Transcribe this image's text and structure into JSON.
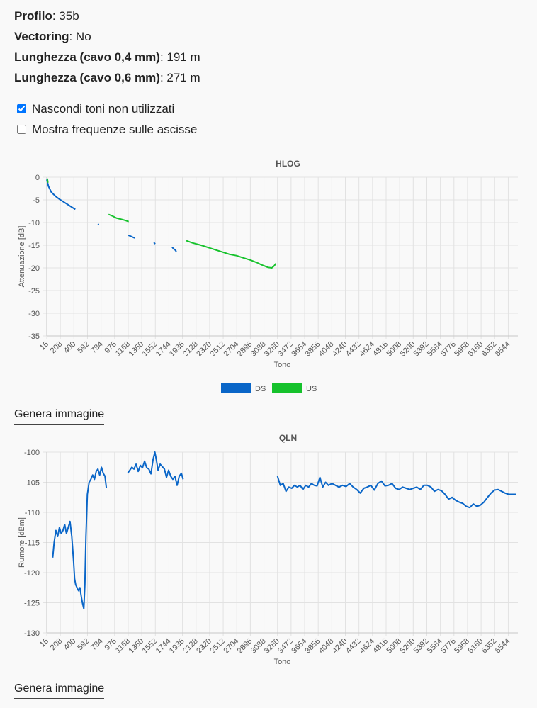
{
  "info": [
    {
      "label": "Profilo",
      "value": "35b"
    },
    {
      "label": "Vectoring",
      "value": "No"
    },
    {
      "label": "Lunghezza (cavo 0,4 mm)",
      "value": "191 m"
    },
    {
      "label": "Lunghezza (cavo 0,6 mm)",
      "value": "271 m"
    }
  ],
  "options": [
    {
      "label": "Nascondi toni non utilizzati",
      "checked": true
    },
    {
      "label": "Mostra frequenze sulle ascisse",
      "checked": false
    }
  ],
  "genera_label": "Genera immagine",
  "chart_data": [
    {
      "type": "line",
      "title": "HLOG",
      "xlabel": "Tono",
      "ylabel": "Attenuazione [dB]",
      "xlim": [
        16,
        6680
      ],
      "ylim": [
        -35,
        0
      ],
      "yticks": [
        0,
        -5,
        -10,
        -15,
        -20,
        -25,
        -30,
        -35
      ],
      "xticks": [
        "16",
        "208",
        "400",
        "592",
        "784",
        "976",
        "1168",
        "1360",
        "1552",
        "1744",
        "1936",
        "2128",
        "2320",
        "2512",
        "2704",
        "2896",
        "3088",
        "3280",
        "3472",
        "3664",
        "3856",
        "4048",
        "4240",
        "4432",
        "4624",
        "4816",
        "5008",
        "5200",
        "5392",
        "5584",
        "5776",
        "5968",
        "6160",
        "6352",
        "6544"
      ],
      "grid": true,
      "legend_position": "bottom",
      "series": [
        {
          "name": "DS",
          "color": "#0a66c8",
          "segments": [
            [
              [
                16,
                -0.5
              ],
              [
                40,
                -2
              ],
              [
                80,
                -3.3
              ],
              [
                140,
                -4.2
              ],
              [
                200,
                -4.9
              ],
              [
                260,
                -5.5
              ],
              [
                320,
                -6.1
              ],
              [
                380,
                -6.7
              ],
              [
                420,
                -7.1
              ]
            ],
            [
              [
                745,
                -10.3
              ],
              [
                750,
                -10.6
              ]
            ],
            [
              [
                1170,
                -12.8
              ],
              [
                1200,
                -13
              ],
              [
                1230,
                -13.2
              ],
              [
                1260,
                -13.4
              ]
            ],
            [
              [
                1530,
                -14.4
              ],
              [
                1550,
                -14.7
              ]
            ],
            [
              [
                1790,
                -15.4
              ],
              [
                1810,
                -15.8
              ],
              [
                1830,
                -16
              ],
              [
                1850,
                -16.4
              ]
            ]
          ]
        },
        {
          "name": "US",
          "color": "#16c22c",
          "segments": [
            [
              [
                24,
                -0.3
              ],
              [
                32,
                -1.2
              ]
            ],
            [
              [
                890,
                -8.2
              ],
              [
                950,
                -8.6
              ],
              [
                1000,
                -9
              ],
              [
                1050,
                -9.2
              ],
              [
                1100,
                -9.4
              ],
              [
                1140,
                -9.6
              ],
              [
                1175,
                -9.8
              ]
            ],
            [
              [
                1990,
                -14
              ],
              [
                2080,
                -14.5
              ],
              [
                2200,
                -15
              ],
              [
                2300,
                -15.5
              ],
              [
                2400,
                -16
              ],
              [
                2500,
                -16.5
              ],
              [
                2600,
                -17
              ],
              [
                2700,
                -17.3
              ],
              [
                2800,
                -17.8
              ],
              [
                2900,
                -18.3
              ],
              [
                3000,
                -18.9
              ],
              [
                3050,
                -19.3
              ],
              [
                3100,
                -19.6
              ],
              [
                3150,
                -19.9
              ],
              [
                3200,
                -20
              ],
              [
                3230,
                -19.6
              ],
              [
                3260,
                -19
              ]
            ]
          ]
        }
      ]
    },
    {
      "type": "line",
      "title": "QLN",
      "xlabel": "Tono",
      "ylabel": "Rumore [dBm]",
      "xlim": [
        16,
        6680
      ],
      "ylim": [
        -130,
        -100
      ],
      "yticks": [
        -100,
        -105,
        -110,
        -115,
        -120,
        -125,
        -130
      ],
      "xticks": [
        "16",
        "208",
        "400",
        "592",
        "784",
        "976",
        "1168",
        "1360",
        "1552",
        "1744",
        "1936",
        "2128",
        "2320",
        "2512",
        "2704",
        "2896",
        "3088",
        "3280",
        "3472",
        "3664",
        "3856",
        "4048",
        "4240",
        "4432",
        "4624",
        "4816",
        "5008",
        "5200",
        "5392",
        "5584",
        "5776",
        "5968",
        "6160",
        "6352",
        "6544"
      ],
      "grid": true,
      "series": [
        {
          "name": "",
          "color": "#0a66c8",
          "segments": [
            [
              [
                100,
                -117.5
              ],
              [
                120,
                -115
              ],
              [
                145,
                -113
              ],
              [
                170,
                -114
              ],
              [
                195,
                -112.5
              ],
              [
                220,
                -113.5
              ],
              [
                245,
                -113
              ],
              [
                270,
                -112
              ],
              [
                295,
                -113.5
              ],
              [
                320,
                -112.5
              ],
              [
                345,
                -111.5
              ],
              [
                370,
                -114
              ],
              [
                395,
                -118
              ],
              [
                410,
                -121
              ],
              [
                425,
                -122
              ],
              [
                445,
                -122.5
              ],
              [
                465,
                -123
              ],
              [
                485,
                -122.5
              ],
              [
                505,
                -124
              ],
              [
                520,
                -125
              ],
              [
                540,
                -126
              ],
              [
                555,
                -122
              ],
              [
                570,
                -114
              ],
              [
                590,
                -107
              ],
              [
                615,
                -105
              ],
              [
                640,
                -104.5
              ],
              [
                665,
                -103.8
              ],
              [
                690,
                -104.5
              ],
              [
                715,
                -103.2
              ],
              [
                740,
                -102.8
              ],
              [
                765,
                -103.8
              ],
              [
                790,
                -102.5
              ],
              [
                815,
                -103.5
              ],
              [
                840,
                -104
              ],
              [
                860,
                -106
              ]
            ],
            [
              [
                1160,
                -103.5
              ],
              [
                1190,
                -103
              ],
              [
                1220,
                -102.5
              ],
              [
                1250,
                -102.8
              ],
              [
                1280,
                -102
              ],
              [
                1310,
                -103.2
              ],
              [
                1340,
                -102.2
              ],
              [
                1370,
                -102.6
              ],
              [
                1400,
                -101.5
              ],
              [
                1430,
                -102.6
              ],
              [
                1460,
                -102.8
              ],
              [
                1490,
                -103.6
              ],
              [
                1520,
                -101.2
              ],
              [
                1545,
                -100
              ],
              [
                1565,
                -101.2
              ],
              [
                1590,
                -103
              ],
              [
                1620,
                -102
              ],
              [
                1650,
                -102.4
              ],
              [
                1680,
                -102.8
              ],
              [
                1710,
                -104.2
              ],
              [
                1740,
                -103
              ],
              [
                1770,
                -104
              ],
              [
                1800,
                -104.5
              ],
              [
                1830,
                -104
              ],
              [
                1860,
                -105.5
              ],
              [
                1890,
                -104
              ],
              [
                1920,
                -103.5
              ],
              [
                1945,
                -104.5
              ]
            ],
            [
              [
                3280,
                -104
              ],
              [
                3320,
                -105.5
              ],
              [
                3360,
                -105.2
              ],
              [
                3400,
                -106.5
              ],
              [
                3440,
                -105.8
              ],
              [
                3480,
                -106
              ],
              [
                3520,
                -105.5
              ],
              [
                3560,
                -105.8
              ],
              [
                3600,
                -105.5
              ],
              [
                3640,
                -106.2
              ],
              [
                3680,
                -105.5
              ],
              [
                3720,
                -105.8
              ],
              [
                3760,
                -105.2
              ],
              [
                3800,
                -105.5
              ],
              [
                3840,
                -105.6
              ],
              [
                3880,
                -104.2
              ],
              [
                3920,
                -105.8
              ],
              [
                3960,
                -105
              ],
              [
                4000,
                -105.5
              ],
              [
                4050,
                -105.2
              ],
              [
                4100,
                -105.5
              ],
              [
                4150,
                -105.8
              ],
              [
                4200,
                -105.5
              ],
              [
                4250,
                -105.7
              ],
              [
                4300,
                -105.2
              ],
              [
                4350,
                -105.8
              ],
              [
                4400,
                -106.2
              ],
              [
                4450,
                -106.8
              ],
              [
                4500,
                -106
              ],
              [
                4550,
                -105.8
              ],
              [
                4600,
                -105.5
              ],
              [
                4650,
                -106.3
              ],
              [
                4700,
                -105.2
              ],
              [
                4750,
                -104.8
              ],
              [
                4800,
                -105.6
              ],
              [
                4850,
                -105.5
              ],
              [
                4900,
                -105.2
              ],
              [
                4950,
                -106
              ],
              [
                5000,
                -106.2
              ],
              [
                5050,
                -105.8
              ],
              [
                5100,
                -106
              ],
              [
                5150,
                -106.2
              ],
              [
                5200,
                -106
              ],
              [
                5250,
                -105.8
              ],
              [
                5300,
                -106.2
              ],
              [
                5350,
                -105.5
              ],
              [
                5400,
                -105.5
              ],
              [
                5450,
                -105.8
              ],
              [
                5500,
                -106.5
              ],
              [
                5550,
                -106.2
              ],
              [
                5600,
                -106.4
              ],
              [
                5650,
                -107
              ],
              [
                5700,
                -107.8
              ],
              [
                5750,
                -107.5
              ],
              [
                5800,
                -108
              ],
              [
                5850,
                -108.3
              ],
              [
                5900,
                -108.5
              ],
              [
                5950,
                -109
              ],
              [
                6000,
                -109.2
              ],
              [
                6050,
                -108.6
              ],
              [
                6100,
                -109
              ],
              [
                6150,
                -108.8
              ],
              [
                6200,
                -108.3
              ],
              [
                6250,
                -107.5
              ],
              [
                6300,
                -106.8
              ],
              [
                6350,
                -106.3
              ],
              [
                6400,
                -106.2
              ],
              [
                6450,
                -106.5
              ],
              [
                6500,
                -106.8
              ],
              [
                6550,
                -107
              ],
              [
                6600,
                -107
              ],
              [
                6650,
                -107
              ]
            ]
          ]
        }
      ]
    }
  ]
}
